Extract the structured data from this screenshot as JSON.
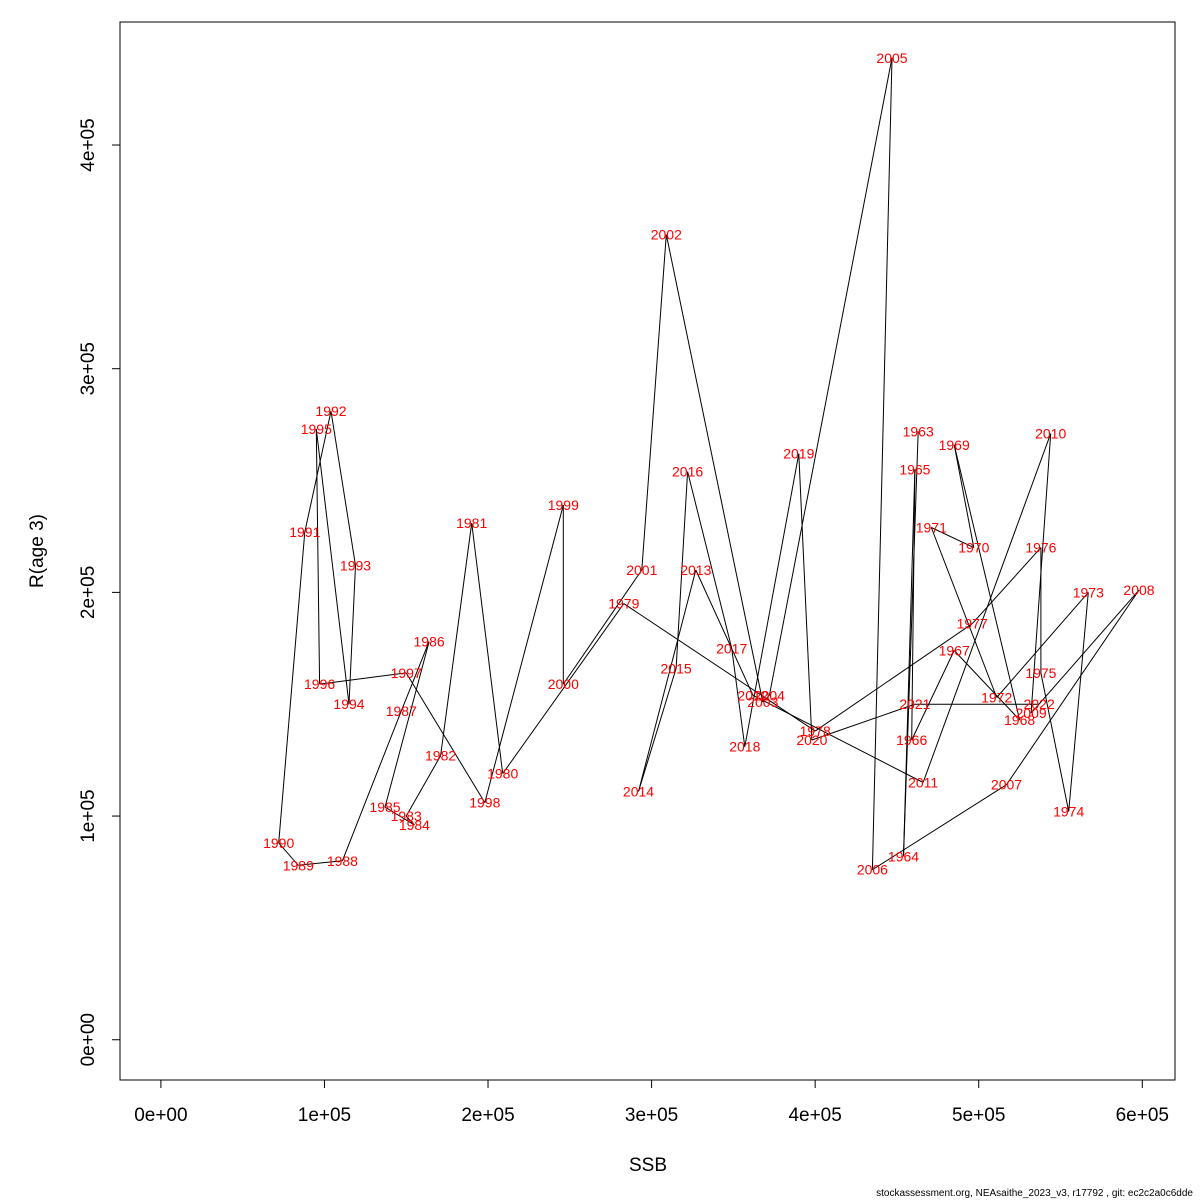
{
  "chart_data": {
    "type": "line",
    "xlabel": "SSB",
    "ylabel": "R(age 3)",
    "xlim": [
      -25000,
      620000
    ],
    "ylim": [
      -18000,
      455000
    ],
    "x_ticks": [
      0,
      100000,
      200000,
      300000,
      400000,
      500000,
      600000
    ],
    "x_tick_labels": [
      "0e+00",
      "1e+05",
      "2e+05",
      "3e+05",
      "4e+05",
      "5e+05",
      "6e+05"
    ],
    "y_ticks": [
      0,
      100000,
      200000,
      300000,
      400000
    ],
    "y_tick_labels": [
      "0e+00",
      "1e+05",
      "2e+05",
      "3e+05",
      "4e+05"
    ],
    "grid": false,
    "line_color": "#000000",
    "label_color": "#ff0000",
    "points": [
      {
        "year": "1963",
        "x": 463000,
        "y": 272000
      },
      {
        "year": "1964",
        "x": 454000,
        "y": 82000
      },
      {
        "year": "1965",
        "x": 461000,
        "y": 255000
      },
      {
        "year": "1966",
        "x": 459000,
        "y": 134000
      },
      {
        "year": "1967",
        "x": 485000,
        "y": 174000
      },
      {
        "year": "1968",
        "x": 525000,
        "y": 143000
      },
      {
        "year": "1969",
        "x": 485000,
        "y": 266000
      },
      {
        "year": "1970",
        "x": 497000,
        "y": 220000
      },
      {
        "year": "1971",
        "x": 471000,
        "y": 229000
      },
      {
        "year": "1972",
        "x": 511000,
        "y": 153000
      },
      {
        "year": "1973",
        "x": 567000,
        "y": 200000
      },
      {
        "year": "1974",
        "x": 555000,
        "y": 102000
      },
      {
        "year": "1975",
        "x": 538000,
        "y": 164000
      },
      {
        "year": "1976",
        "x": 538000,
        "y": 220000
      },
      {
        "year": "1977",
        "x": 496000,
        "y": 186000
      },
      {
        "year": "1978",
        "x": 400000,
        "y": 138000
      },
      {
        "year": "1979",
        "x": 283000,
        "y": 195000
      },
      {
        "year": "1980",
        "x": 209000,
        "y": 119000
      },
      {
        "year": "1981",
        "x": 190000,
        "y": 231000
      },
      {
        "year": "1982",
        "x": 171000,
        "y": 127000
      },
      {
        "year": "1983",
        "x": 150000,
        "y": 100000
      },
      {
        "year": "1984",
        "x": 155000,
        "y": 96000
      },
      {
        "year": "1985",
        "x": 137000,
        "y": 104000
      },
      {
        "year": "1986",
        "x": 164000,
        "y": 178000
      },
      {
        "year": "1987",
        "x": 147000,
        "y": 147000
      },
      {
        "year": "1988",
        "x": 111000,
        "y": 80000
      },
      {
        "year": "1989",
        "x": 84000,
        "y": 78000
      },
      {
        "year": "1990",
        "x": 72000,
        "y": 88000
      },
      {
        "year": "1991",
        "x": 88000,
        "y": 227000
      },
      {
        "year": "1992",
        "x": 104000,
        "y": 281000
      },
      {
        "year": "1993",
        "x": 119000,
        "y": 212000
      },
      {
        "year": "1994",
        "x": 115000,
        "y": 150000
      },
      {
        "year": "1995",
        "x": 95000,
        "y": 273000
      },
      {
        "year": "1996",
        "x": 97000,
        "y": 159000
      },
      {
        "year": "1997",
        "x": 150000,
        "y": 164000
      },
      {
        "year": "1998",
        "x": 198000,
        "y": 106000
      },
      {
        "year": "1999",
        "x": 246000,
        "y": 239000
      },
      {
        "year": "2000",
        "x": 246000,
        "y": 159000
      },
      {
        "year": "2001",
        "x": 294000,
        "y": 210000
      },
      {
        "year": "2002",
        "x": 309000,
        "y": 360000
      },
      {
        "year": "2003",
        "x": 368000,
        "y": 151000
      },
      {
        "year": "2004",
        "x": 372000,
        "y": 154000
      },
      {
        "year": "2005",
        "x": 447000,
        "y": 439000
      },
      {
        "year": "2006",
        "x": 435000,
        "y": 76000
      },
      {
        "year": "2007",
        "x": 517000,
        "y": 114000
      },
      {
        "year": "2008",
        "x": 598000,
        "y": 201000
      },
      {
        "year": "2009",
        "x": 532000,
        "y": 146000
      },
      {
        "year": "2010",
        "x": 544000,
        "y": 271000
      },
      {
        "year": "2011",
        "x": 466000,
        "y": 115000
      },
      {
        "year": "2012",
        "x": 362000,
        "y": 154000
      },
      {
        "year": "2013",
        "x": 327000,
        "y": 210000
      },
      {
        "year": "2014",
        "x": 292000,
        "y": 111000
      },
      {
        "year": "2015",
        "x": 315000,
        "y": 166000
      },
      {
        "year": "2016",
        "x": 322000,
        "y": 254000
      },
      {
        "year": "2017",
        "x": 349000,
        "y": 175000
      },
      {
        "year": "2018",
        "x": 357000,
        "y": 131000
      },
      {
        "year": "2019",
        "x": 390000,
        "y": 262000
      },
      {
        "year": "2020",
        "x": 398000,
        "y": 134000
      },
      {
        "year": "2021",
        "x": 461000,
        "y": 150000
      },
      {
        "year": "2022",
        "x": 537000,
        "y": 150000
      }
    ]
  },
  "footer": {
    "credit": "stockassessment.org, NEAsaithe_2023_v3, r17792 , git: ec2c2a0c6dde"
  }
}
